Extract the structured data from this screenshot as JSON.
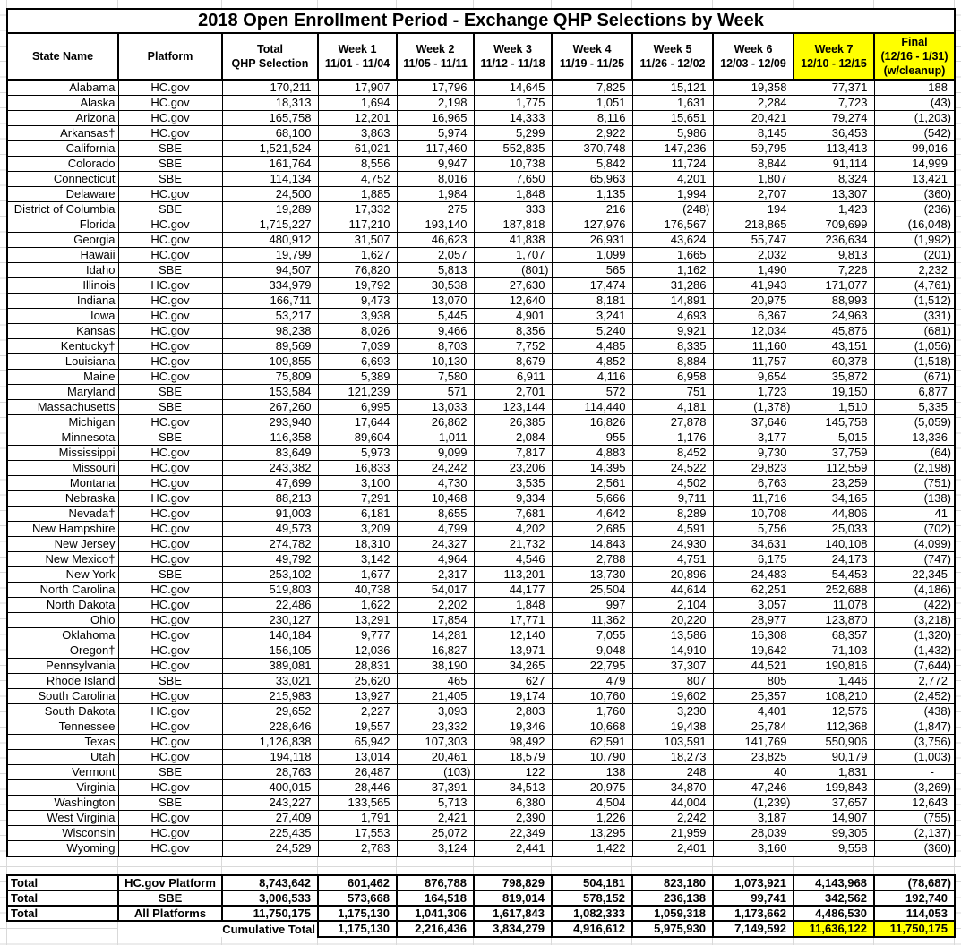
{
  "title": "2018 Open Enrollment Period - Exchange QHP Selections by Week",
  "header": {
    "state": "State Name",
    "platform": "Platform",
    "total_lines": [
      "Total",
      "QHP Selection"
    ],
    "weeks": [
      {
        "label": "Week 1",
        "dates": "11/01 - 11/04",
        "highlight": false
      },
      {
        "label": "Week 2",
        "dates": "11/05 - 11/11",
        "highlight": false
      },
      {
        "label": "Week 3",
        "dates": "11/12 - 11/18",
        "highlight": false
      },
      {
        "label": "Week 4",
        "dates": "11/19 - 11/25",
        "highlight": false
      },
      {
        "label": "Week 5",
        "dates": "11/26 - 12/02",
        "highlight": false
      },
      {
        "label": "Week 6",
        "dates": "12/03 - 12/09",
        "highlight": false
      },
      {
        "label": "Week 7",
        "dates": "12/10 - 12/15",
        "highlight": true
      }
    ],
    "final_lines": [
      "Final",
      "(12/16 - 1/31)",
      "(w/cleanup)"
    ]
  },
  "rows": [
    {
      "state": "Alabama",
      "platform": "HC.gov",
      "values": [
        "170,211",
        "17,907",
        "17,796",
        "14,645",
        "7,825",
        "15,121",
        "19,358",
        "77,371",
        "188"
      ]
    },
    {
      "state": "Alaska",
      "platform": "HC.gov",
      "values": [
        "18,313",
        "1,694",
        "2,198",
        "1,775",
        "1,051",
        "1,631",
        "2,284",
        "7,723",
        "(43)"
      ]
    },
    {
      "state": "Arizona",
      "platform": "HC.gov",
      "values": [
        "165,758",
        "12,201",
        "16,965",
        "14,333",
        "8,116",
        "15,651",
        "20,421",
        "79,274",
        "(1,203)"
      ]
    },
    {
      "state": "Arkansas†",
      "platform": "HC.gov",
      "values": [
        "68,100",
        "3,863",
        "5,974",
        "5,299",
        "2,922",
        "5,986",
        "8,145",
        "36,453",
        "(542)"
      ]
    },
    {
      "state": "California",
      "platform": "SBE",
      "values": [
        "1,521,524",
        "61,021",
        "117,460",
        "552,835",
        "370,748",
        "147,236",
        "59,795",
        "113,413",
        "99,016"
      ]
    },
    {
      "state": "Colorado",
      "platform": "SBE",
      "values": [
        "161,764",
        "8,556",
        "9,947",
        "10,738",
        "5,842",
        "11,724",
        "8,844",
        "91,114",
        "14,999"
      ]
    },
    {
      "state": "Connecticut",
      "platform": "SBE",
      "values": [
        "114,134",
        "4,752",
        "8,016",
        "7,650",
        "65,963",
        "4,201",
        "1,807",
        "8,324",
        "13,421"
      ]
    },
    {
      "state": "Delaware",
      "platform": "HC.gov",
      "values": [
        "24,500",
        "1,885",
        "1,984",
        "1,848",
        "1,135",
        "1,994",
        "2,707",
        "13,307",
        "(360)"
      ]
    },
    {
      "state": "District of Columbia",
      "platform": "SBE",
      "values": [
        "19,289",
        "17,332",
        "275",
        "333",
        "216",
        "(248)",
        "194",
        "1,423",
        "(236)"
      ]
    },
    {
      "state": "Florida",
      "platform": "HC.gov",
      "values": [
        "1,715,227",
        "117,210",
        "193,140",
        "187,818",
        "127,976",
        "176,567",
        "218,865",
        "709,699",
        "(16,048)"
      ]
    },
    {
      "state": "Georgia",
      "platform": "HC.gov",
      "values": [
        "480,912",
        "31,507",
        "46,623",
        "41,838",
        "26,931",
        "43,624",
        "55,747",
        "236,634",
        "(1,992)"
      ]
    },
    {
      "state": "Hawaii",
      "platform": "HC.gov",
      "values": [
        "19,799",
        "1,627",
        "2,057",
        "1,707",
        "1,099",
        "1,665",
        "2,032",
        "9,813",
        "(201)"
      ]
    },
    {
      "state": "Idaho",
      "platform": "SBE",
      "values": [
        "94,507",
        "76,820",
        "5,813",
        "(801)",
        "565",
        "1,162",
        "1,490",
        "7,226",
        "2,232"
      ]
    },
    {
      "state": "Illinois",
      "platform": "HC.gov",
      "values": [
        "334,979",
        "19,792",
        "30,538",
        "27,630",
        "17,474",
        "31,286",
        "41,943",
        "171,077",
        "(4,761)"
      ]
    },
    {
      "state": "Indiana",
      "platform": "HC.gov",
      "values": [
        "166,711",
        "9,473",
        "13,070",
        "12,640",
        "8,181",
        "14,891",
        "20,975",
        "88,993",
        "(1,512)"
      ]
    },
    {
      "state": "Iowa",
      "platform": "HC.gov",
      "values": [
        "53,217",
        "3,938",
        "5,445",
        "4,901",
        "3,241",
        "4,693",
        "6,367",
        "24,963",
        "(331)"
      ]
    },
    {
      "state": "Kansas",
      "platform": "HC.gov",
      "values": [
        "98,238",
        "8,026",
        "9,466",
        "8,356",
        "5,240",
        "9,921",
        "12,034",
        "45,876",
        "(681)"
      ]
    },
    {
      "state": "Kentucky†",
      "platform": "HC.gov",
      "values": [
        "89,569",
        "7,039",
        "8,703",
        "7,752",
        "4,485",
        "8,335",
        "11,160",
        "43,151",
        "(1,056)"
      ]
    },
    {
      "state": "Louisiana",
      "platform": "HC.gov",
      "values": [
        "109,855",
        "6,693",
        "10,130",
        "8,679",
        "4,852",
        "8,884",
        "11,757",
        "60,378",
        "(1,518)"
      ]
    },
    {
      "state": "Maine",
      "platform": "HC.gov",
      "values": [
        "75,809",
        "5,389",
        "7,580",
        "6,911",
        "4,116",
        "6,958",
        "9,654",
        "35,872",
        "(671)"
      ]
    },
    {
      "state": "Maryland",
      "platform": "SBE",
      "values": [
        "153,584",
        "121,239",
        "571",
        "2,701",
        "572",
        "751",
        "1,723",
        "19,150",
        "6,877"
      ]
    },
    {
      "state": "Massachusetts",
      "platform": "SBE",
      "values": [
        "267,260",
        "6,995",
        "13,033",
        "123,144",
        "114,440",
        "4,181",
        "(1,378)",
        "1,510",
        "5,335"
      ]
    },
    {
      "state": "Michigan",
      "platform": "HC.gov",
      "values": [
        "293,940",
        "17,644",
        "26,862",
        "26,385",
        "16,826",
        "27,878",
        "37,646",
        "145,758",
        "(5,059)"
      ]
    },
    {
      "state": "Minnesota",
      "platform": "SBE",
      "values": [
        "116,358",
        "89,604",
        "1,011",
        "2,084",
        "955",
        "1,176",
        "3,177",
        "5,015",
        "13,336"
      ]
    },
    {
      "state": "Mississippi",
      "platform": "HC.gov",
      "values": [
        "83,649",
        "5,973",
        "9,099",
        "7,817",
        "4,883",
        "8,452",
        "9,730",
        "37,759",
        "(64)"
      ]
    },
    {
      "state": "Missouri",
      "platform": "HC.gov",
      "values": [
        "243,382",
        "16,833",
        "24,242",
        "23,206",
        "14,395",
        "24,522",
        "29,823",
        "112,559",
        "(2,198)"
      ]
    },
    {
      "state": "Montana",
      "platform": "HC.gov",
      "values": [
        "47,699",
        "3,100",
        "4,730",
        "3,535",
        "2,561",
        "4,502",
        "6,763",
        "23,259",
        "(751)"
      ]
    },
    {
      "state": "Nebraska",
      "platform": "HC.gov",
      "values": [
        "88,213",
        "7,291",
        "10,468",
        "9,334",
        "5,666",
        "9,711",
        "11,716",
        "34,165",
        "(138)"
      ]
    },
    {
      "state": "Nevada†",
      "platform": "HC.gov",
      "values": [
        "91,003",
        "6,181",
        "8,655",
        "7,681",
        "4,642",
        "8,289",
        "10,708",
        "44,806",
        "41"
      ]
    },
    {
      "state": "New Hampshire",
      "platform": "HC.gov",
      "values": [
        "49,573",
        "3,209",
        "4,799",
        "4,202",
        "2,685",
        "4,591",
        "5,756",
        "25,033",
        "(702)"
      ]
    },
    {
      "state": "New Jersey",
      "platform": "HC.gov",
      "values": [
        "274,782",
        "18,310",
        "24,327",
        "21,732",
        "14,843",
        "24,930",
        "34,631",
        "140,108",
        "(4,099)"
      ]
    },
    {
      "state": "New Mexico†",
      "platform": "HC.gov",
      "values": [
        "49,792",
        "3,142",
        "4,964",
        "4,546",
        "2,788",
        "4,751",
        "6,175",
        "24,173",
        "(747)"
      ]
    },
    {
      "state": "New York",
      "platform": "SBE",
      "values": [
        "253,102",
        "1,677",
        "2,317",
        "113,201",
        "13,730",
        "20,896",
        "24,483",
        "54,453",
        "22,345"
      ]
    },
    {
      "state": "North Carolina",
      "platform": "HC.gov",
      "values": [
        "519,803",
        "40,738",
        "54,017",
        "44,177",
        "25,504",
        "44,614",
        "62,251",
        "252,688",
        "(4,186)"
      ]
    },
    {
      "state": "North Dakota",
      "platform": "HC.gov",
      "values": [
        "22,486",
        "1,622",
        "2,202",
        "1,848",
        "997",
        "2,104",
        "3,057",
        "11,078",
        "(422)"
      ]
    },
    {
      "state": "Ohio",
      "platform": "HC.gov",
      "values": [
        "230,127",
        "13,291",
        "17,854",
        "17,771",
        "11,362",
        "20,220",
        "28,977",
        "123,870",
        "(3,218)"
      ]
    },
    {
      "state": "Oklahoma",
      "platform": "HC.gov",
      "values": [
        "140,184",
        "9,777",
        "14,281",
        "12,140",
        "7,055",
        "13,586",
        "16,308",
        "68,357",
        "(1,320)"
      ]
    },
    {
      "state": "Oregon†",
      "platform": "HC.gov",
      "values": [
        "156,105",
        "12,036",
        "16,827",
        "13,971",
        "9,048",
        "14,910",
        "19,642",
        "71,103",
        "(1,432)"
      ]
    },
    {
      "state": "Pennsylvania",
      "platform": "HC.gov",
      "values": [
        "389,081",
        "28,831",
        "38,190",
        "34,265",
        "22,795",
        "37,307",
        "44,521",
        "190,816",
        "(7,644)"
      ]
    },
    {
      "state": "Rhode Island",
      "platform": "SBE",
      "values": [
        "33,021",
        "25,620",
        "465",
        "627",
        "479",
        "807",
        "805",
        "1,446",
        "2,772"
      ]
    },
    {
      "state": "South Carolina",
      "platform": "HC.gov",
      "values": [
        "215,983",
        "13,927",
        "21,405",
        "19,174",
        "10,760",
        "19,602",
        "25,357",
        "108,210",
        "(2,452)"
      ]
    },
    {
      "state": "South Dakota",
      "platform": "HC.gov",
      "values": [
        "29,652",
        "2,227",
        "3,093",
        "2,803",
        "1,760",
        "3,230",
        "4,401",
        "12,576",
        "(438)"
      ]
    },
    {
      "state": "Tennessee",
      "platform": "HC.gov",
      "values": [
        "228,646",
        "19,557",
        "23,332",
        "19,346",
        "10,668",
        "19,438",
        "25,784",
        "112,368",
        "(1,847)"
      ]
    },
    {
      "state": "Texas",
      "platform": "HC.gov",
      "values": [
        "1,126,838",
        "65,942",
        "107,303",
        "98,492",
        "62,591",
        "103,591",
        "141,769",
        "550,906",
        "(3,756)"
      ]
    },
    {
      "state": "Utah",
      "platform": "HC.gov",
      "values": [
        "194,118",
        "13,014",
        "20,461",
        "18,579",
        "10,790",
        "18,273",
        "23,825",
        "90,179",
        "(1,003)"
      ]
    },
    {
      "state": "Vermont",
      "platform": "SBE",
      "values": [
        "28,763",
        "26,487",
        "(103)",
        "122",
        "138",
        "248",
        "40",
        "1,831",
        "-"
      ]
    },
    {
      "state": "Virginia",
      "platform": "HC.gov",
      "values": [
        "400,015",
        "28,446",
        "37,391",
        "34,513",
        "20,975",
        "34,870",
        "47,246",
        "199,843",
        "(3,269)"
      ]
    },
    {
      "state": "Washington",
      "platform": "SBE",
      "values": [
        "243,227",
        "133,565",
        "5,713",
        "6,380",
        "4,504",
        "44,004",
        "(1,239)",
        "37,657",
        "12,643"
      ]
    },
    {
      "state": "West Virginia",
      "platform": "HC.gov",
      "values": [
        "27,409",
        "1,791",
        "2,421",
        "2,390",
        "1,226",
        "2,242",
        "3,187",
        "14,907",
        "(755)"
      ]
    },
    {
      "state": "Wisconsin",
      "platform": "HC.gov",
      "values": [
        "225,435",
        "17,553",
        "25,072",
        "22,349",
        "13,295",
        "21,959",
        "28,039",
        "99,305",
        "(2,137)"
      ]
    },
    {
      "state": "Wyoming",
      "platform": "HC.gov",
      "values": [
        "24,529",
        "2,783",
        "3,124",
        "2,441",
        "1,422",
        "2,401",
        "3,160",
        "9,558",
        "(360)"
      ]
    }
  ],
  "totals": [
    {
      "label": "Total",
      "platform": "HC.gov Platform",
      "values": [
        "8,743,642",
        "601,462",
        "876,788",
        "798,829",
        "504,181",
        "823,180",
        "1,073,921",
        "4,143,968",
        "(78,687)"
      ]
    },
    {
      "label": "Total",
      "platform": "SBE",
      "values": [
        "3,006,533",
        "573,668",
        "164,518",
        "819,014",
        "578,152",
        "236,138",
        "99,741",
        "342,562",
        "192,740"
      ]
    },
    {
      "label": "Total",
      "platform": "All Platforms",
      "values": [
        "11,750,175",
        "1,175,130",
        "1,041,306",
        "1,617,843",
        "1,082,333",
        "1,059,318",
        "1,173,662",
        "4,486,530",
        "114,053"
      ]
    }
  ],
  "cumulative": {
    "label": "Cumulative Total",
    "values": [
      "1,175,130",
      "2,216,436",
      "3,834,279",
      "4,916,612",
      "5,975,930",
      "7,149,592",
      "11,636,122",
      "11,750,175"
    ],
    "highlighted_values": [
      "11,636,122",
      "11,750,175"
    ]
  },
  "colors": {
    "highlight_yellow": "#FFFF00",
    "grid_gray": "#D9D9D9",
    "border_black": "#000000"
  }
}
